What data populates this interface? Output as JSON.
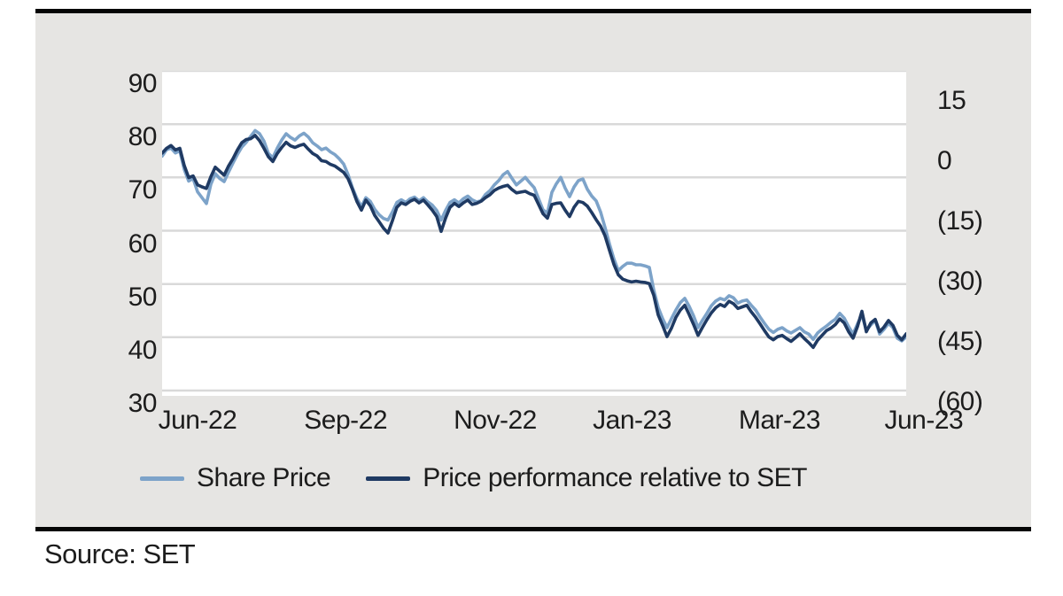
{
  "page": {
    "source_note": "Source: SET"
  },
  "chart_data": {
    "type": "line",
    "title": "",
    "grid": "horizontal",
    "grid_color": "#d9d9d9",
    "x_axis": {
      "tick_labels": [
        "Jun-22",
        "Sep-22",
        "Nov-22",
        "Jan-23",
        "Mar-23",
        "Jun-23"
      ],
      "tick_positions": [
        0.0,
        0.199,
        0.4,
        0.584,
        0.782,
        0.976
      ]
    },
    "left_axis": {
      "min": 30,
      "max": 90,
      "ticks": [
        90,
        80,
        70,
        60,
        50,
        40,
        30
      ],
      "series_name": "Share Price"
    },
    "right_axis": {
      "min": -60,
      "max": 15,
      "ticks": [
        15,
        0,
        -15,
        -30,
        -45,
        -60
      ],
      "tick_labels": [
        "15",
        "0",
        "(15)",
        "(30)",
        "(45)",
        "(60)"
      ],
      "series_name": "Price performance relative to SET"
    },
    "legend": {
      "position": "bottom",
      "entries": [
        {
          "label": "Share Price",
          "color": "#7da3c9"
        },
        {
          "label": "Price performance relative to SET",
          "color": "#1f3a63"
        }
      ]
    },
    "series": [
      {
        "name": "Share Price",
        "axis": "left",
        "color": "#7da3c9",
        "values": [
          74.0,
          75.2,
          75.5,
          74.6,
          75.0,
          71.5,
          69.3,
          69.8,
          67.3,
          66.2,
          65.1,
          68.7,
          70.7,
          69.8,
          69.2,
          71.0,
          72.7,
          74.3,
          75.7,
          76.6,
          77.7,
          78.8,
          78.2,
          76.8,
          74.5,
          73.7,
          75.5,
          77.0,
          78.2,
          77.5,
          77.0,
          77.8,
          78.3,
          77.6,
          76.5,
          75.9,
          75.2,
          75.5,
          74.8,
          74.3,
          73.5,
          72.5,
          70.5,
          68.0,
          66.0,
          64.5,
          66.2,
          65.5,
          64.0,
          63.0,
          62.3,
          62.0,
          63.5,
          65.3,
          65.8,
          65.3,
          66.0,
          66.3,
          65.6,
          66.2,
          65.4,
          64.8,
          63.8,
          62.0,
          63.8,
          65.3,
          65.8,
          65.2,
          66.0,
          66.5,
          65.8,
          65.4,
          65.6,
          66.8,
          67.5,
          68.6,
          69.4,
          70.5,
          71.1,
          69.8,
          68.6,
          69.3,
          70.0,
          69.0,
          68.1,
          66.0,
          63.9,
          63.3,
          67.2,
          68.8,
          70.0,
          68.0,
          66.4,
          68.2,
          69.4,
          69.7,
          67.8,
          66.5,
          65.6,
          63.5,
          60.6,
          57.5,
          54.7,
          52.5,
          53.3,
          53.9,
          53.9,
          53.6,
          53.6,
          53.4,
          53.1,
          48.9,
          45.6,
          43.5,
          41.8,
          43.5,
          45.1,
          46.5,
          47.3,
          45.8,
          44.0,
          41.8,
          43.2,
          44.5,
          45.9,
          46.8,
          47.3,
          47.0,
          47.8,
          47.4,
          46.4,
          46.8,
          47.0,
          46.0,
          45.1,
          43.8,
          42.6,
          41.5,
          40.9,
          41.5,
          41.8,
          41.2,
          40.8,
          41.3,
          41.8,
          41.0,
          40.6,
          39.6,
          40.8,
          41.5,
          42.1,
          42.8,
          43.4,
          44.5,
          43.6,
          42.0,
          40.6,
          42.5,
          44.2,
          41.3,
          42.3,
          43.2,
          40.6,
          41.5,
          42.6,
          41.8,
          39.8,
          39.3,
          40.1
        ]
      },
      {
        "name": "Price performance relative to SET",
        "axis": "right",
        "color": "#1f3a63",
        "values": [
          -1.3,
          -0.1,
          0.6,
          -0.5,
          -0.1,
          -4.4,
          -7.4,
          -7.0,
          -9.2,
          -9.7,
          -10.1,
          -7.2,
          -4.8,
          -5.8,
          -6.8,
          -4.5,
          -2.7,
          -0.5,
          1.3,
          2.1,
          2.3,
          3.1,
          1.8,
          -0.1,
          -2.2,
          -3.4,
          -1.4,
          0.1,
          1.4,
          0.5,
          0.1,
          0.6,
          0.9,
          -0.3,
          -1.4,
          -2.0,
          -3.2,
          -3.4,
          -4.1,
          -4.5,
          -5.3,
          -6.1,
          -7.7,
          -10.4,
          -13.4,
          -15.5,
          -13.0,
          -14.4,
          -16.8,
          -18.4,
          -20.0,
          -21.2,
          -18.1,
          -14.8,
          -13.7,
          -14.1,
          -13.3,
          -12.8,
          -13.7,
          -13.0,
          -14.2,
          -15.5,
          -17.1,
          -20.8,
          -17.5,
          -14.8,
          -13.8,
          -14.6,
          -13.7,
          -13.0,
          -14.1,
          -13.8,
          -13.3,
          -12.4,
          -11.7,
          -10.6,
          -10.0,
          -9.6,
          -9.3,
          -10.4,
          -11.2,
          -11.0,
          -10.8,
          -11.4,
          -11.8,
          -14.1,
          -16.4,
          -17.5,
          -14.1,
          -13.8,
          -13.7,
          -15.5,
          -17.1,
          -14.8,
          -13.3,
          -13.6,
          -14.5,
          -16.1,
          -17.9,
          -19.5,
          -21.9,
          -25.5,
          -29.0,
          -31.6,
          -32.7,
          -33.1,
          -33.4,
          -33.2,
          -33.4,
          -33.5,
          -33.8,
          -36.7,
          -41.6,
          -44.2,
          -47.0,
          -44.9,
          -42.2,
          -40.4,
          -39.2,
          -41.5,
          -44.0,
          -46.7,
          -44.7,
          -42.8,
          -41.1,
          -39.8,
          -39.0,
          -39.5,
          -38.2,
          -38.8,
          -40.0,
          -39.6,
          -39.2,
          -40.8,
          -42.2,
          -43.8,
          -45.5,
          -47.1,
          -47.8,
          -47.0,
          -46.7,
          -47.5,
          -48.2,
          -47.3,
          -46.3,
          -47.5,
          -48.5,
          -49.7,
          -47.9,
          -46.7,
          -45.5,
          -44.9,
          -44.0,
          -42.6,
          -43.6,
          -45.8,
          -47.4,
          -44.5,
          -40.7,
          -45.8,
          -43.6,
          -42.7,
          -45.8,
          -44.6,
          -43.0,
          -44.2,
          -46.7,
          -47.8,
          -46.3
        ]
      }
    ]
  }
}
